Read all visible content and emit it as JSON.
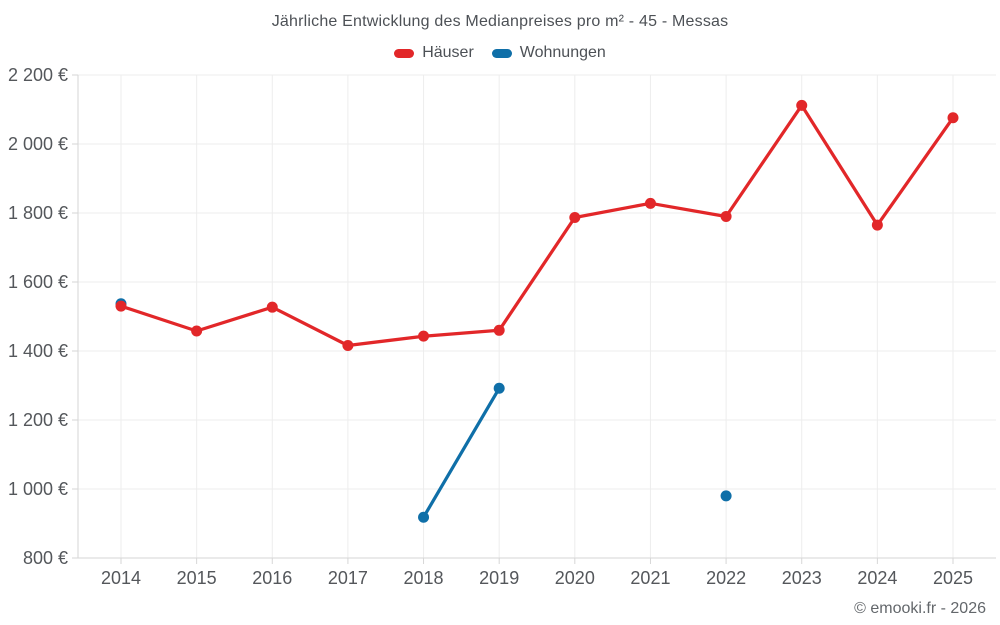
{
  "chart_data": {
    "type": "line",
    "title": "Jährliche Entwicklung des Medianpreises pro m² - 45 - Messas",
    "categories": [
      "2014",
      "2015",
      "2016",
      "2017",
      "2018",
      "2019",
      "2020",
      "2021",
      "2022",
      "2023",
      "2024",
      "2025"
    ],
    "series": [
      {
        "name": "Häuser",
        "color": "#e22729",
        "values": [
          1530,
          1458,
          1527,
          1416,
          1443,
          1460,
          1787,
          1828,
          1790,
          2112,
          1765,
          2076
        ]
      },
      {
        "name": "Wohnungen",
        "color": "#0f6fa8",
        "values": [
          1537,
          null,
          null,
          null,
          918,
          1292,
          null,
          null,
          980,
          null,
          null,
          null
        ]
      }
    ],
    "ylim": [
      800,
      2200
    ],
    "yticks": [
      {
        "value": 800,
        "label": "800 €"
      },
      {
        "value": 1000,
        "label": "1 000 €"
      },
      {
        "value": 1200,
        "label": "1 200 €"
      },
      {
        "value": 1400,
        "label": "1 400 €"
      },
      {
        "value": 1600,
        "label": "1 600 €"
      },
      {
        "value": 1800,
        "label": "1 800 €"
      },
      {
        "value": 2000,
        "label": "2 000 €"
      },
      {
        "value": 2200,
        "label": "2 200 €"
      }
    ],
    "grid": true,
    "legend_position": "top",
    "footer": "© emooki.fr - 2026"
  },
  "colors": {
    "grid": "#ededed",
    "axis": "#d6d6d6",
    "tick_label": "#54575b",
    "title_text": "#4d5156",
    "footer_text": "#63676b",
    "background": "#ffffff"
  }
}
